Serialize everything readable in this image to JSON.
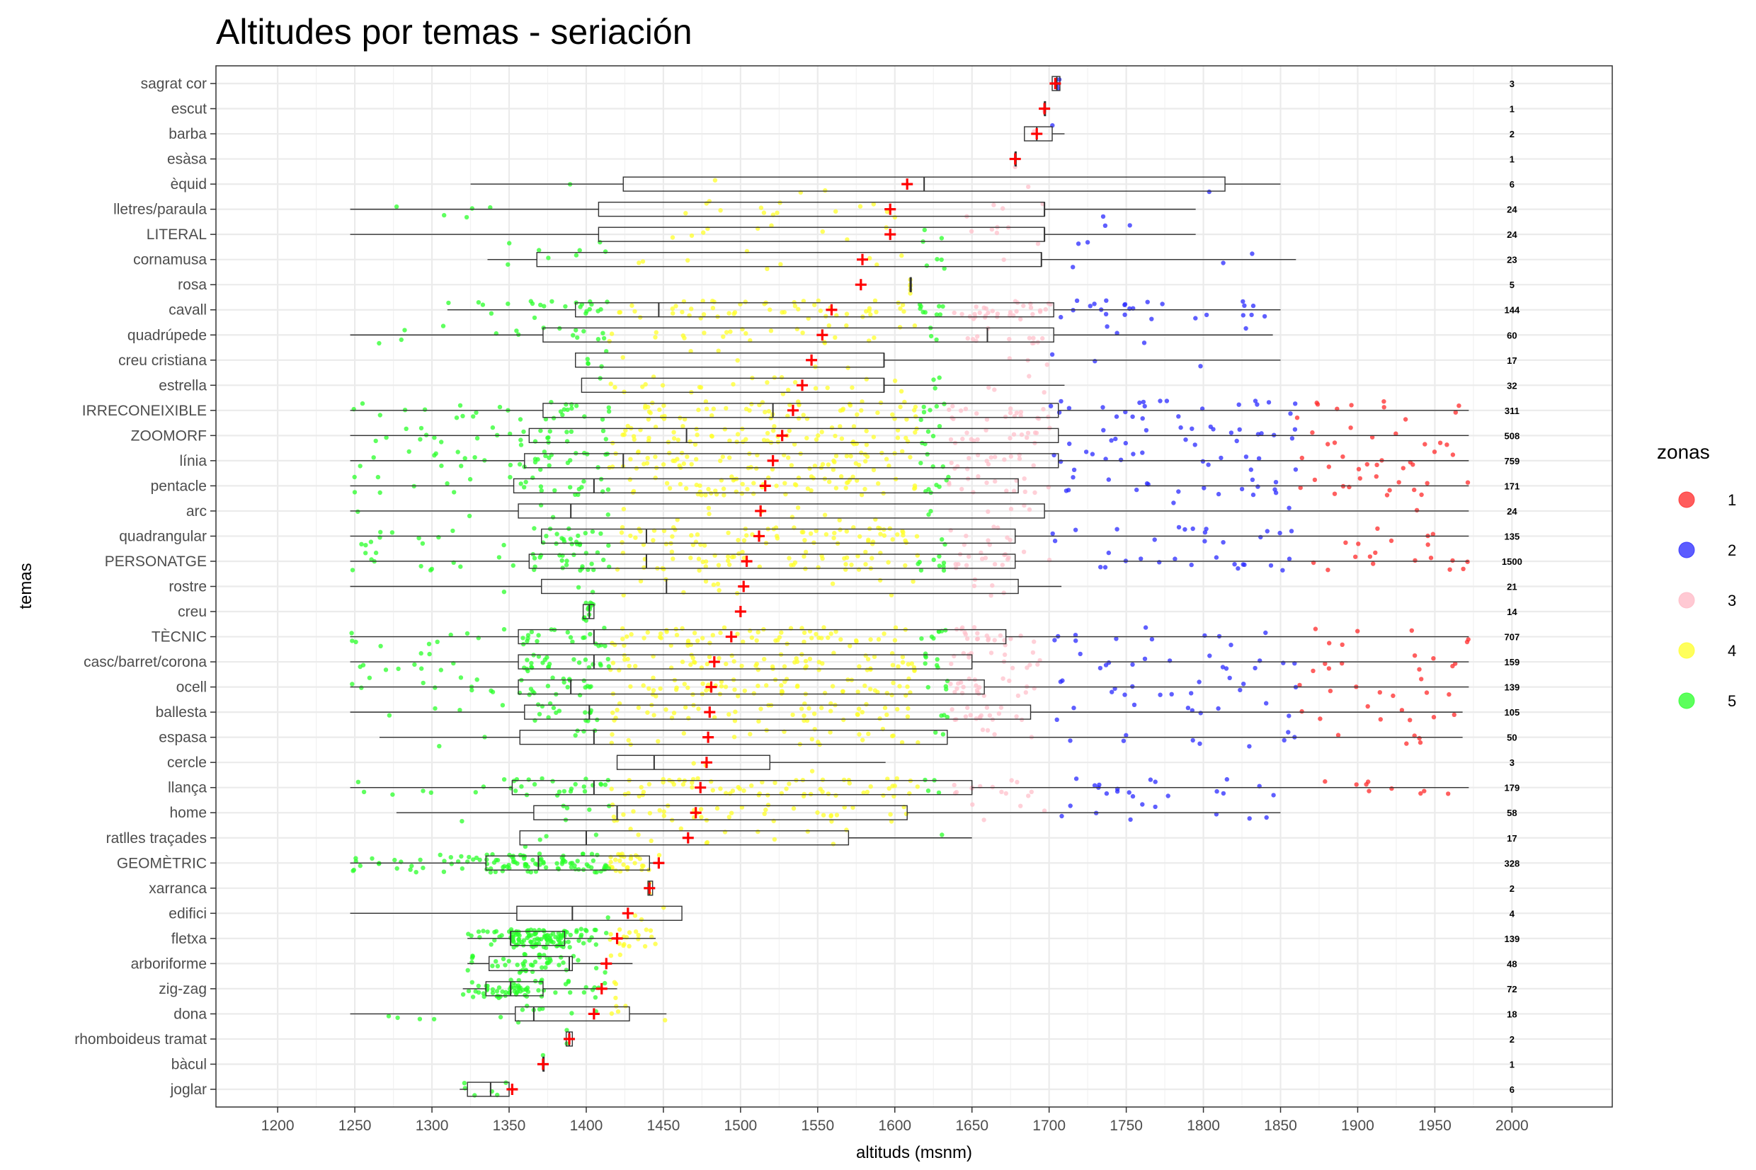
{
  "chart_data": {
    "type": "boxplot",
    "title": "Altitudes por temas - seriación",
    "xlabel": "altituds (msnm)",
    "ylabel": "temas",
    "xlim": [
      1160,
      2065
    ],
    "x_ticks": [
      1200,
      1250,
      1300,
      1350,
      1400,
      1450,
      1500,
      1550,
      1600,
      1650,
      1700,
      1750,
      1800,
      1850,
      1900,
      1950,
      2000
    ],
    "grid": true,
    "legend": {
      "title": "zonas",
      "placement": "right",
      "items": [
        {
          "label": "1",
          "color": "#ff4040"
        },
        {
          "label": "2",
          "color": "#4040ff"
        },
        {
          "label": "3",
          "color": "#ffc0cb"
        },
        {
          "label": "4",
          "color": "#ffff40"
        },
        {
          "label": "5",
          "color": "#40ff40"
        }
      ]
    },
    "zone_colors": {
      "1": "#ff2a2a",
      "2": "#2a2aff",
      "3": "#ffc0cb",
      "4": "#ffff2a",
      "5": "#2aff2a"
    },
    "mean_marker_color": "#ff0000",
    "categories": [
      {
        "label": "sagrat cor",
        "n": "3",
        "whisker_low": 1702,
        "q1": 1702,
        "median": 1705,
        "q3": 1707,
        "whisker_high": 1707,
        "mean": 1704,
        "bold": false
      },
      {
        "label": "escut",
        "n": "1",
        "whisker_low": 1697,
        "q1": 1697,
        "median": 1697,
        "q3": 1697,
        "whisker_high": 1697,
        "mean": 1697,
        "bold": false
      },
      {
        "label": "barba",
        "n": "2",
        "whisker_low": 1684,
        "q1": 1684,
        "median": 1692,
        "q3": 1702,
        "whisker_high": 1710,
        "mean": 1692,
        "bold": false
      },
      {
        "label": "esàsa",
        "n": "1",
        "whisker_low": 1678,
        "q1": 1678,
        "median": 1678,
        "q3": 1678,
        "whisker_high": 1678,
        "mean": 1678,
        "bold": false
      },
      {
        "label": "èquid",
        "n": "6",
        "whisker_low": 1325,
        "q1": 1424,
        "median": 1619,
        "q3": 1814,
        "whisker_high": 1850,
        "mean": 1608,
        "bold": false
      },
      {
        "label": "lletres/paraula",
        "n": "24",
        "whisker_low": 1247,
        "q1": 1408,
        "median": 1697,
        "q3": 1697,
        "whisker_high": 1795,
        "mean": 1597,
        "bold": true
      },
      {
        "label": "LITERAL",
        "n": "24",
        "whisker_low": 1247,
        "q1": 1408,
        "median": 1697,
        "q3": 1697,
        "whisker_high": 1795,
        "mean": 1597,
        "bold": true
      },
      {
        "label": "cornamusa",
        "n": "23",
        "whisker_low": 1336,
        "q1": 1368,
        "median": 1695,
        "q3": 1695,
        "whisker_high": 1860,
        "mean": 1579,
        "bold": true
      },
      {
        "label": "rosa",
        "n": "5",
        "whisker_low": 1610,
        "q1": 1610,
        "median": 1610,
        "q3": 1610,
        "whisker_high": 1610,
        "mean": 1578,
        "bold": false
      },
      {
        "label": "cavall",
        "n": "144",
        "whisker_low": 1310,
        "q1": 1393,
        "median": 1447,
        "q3": 1703,
        "whisker_high": 1850,
        "mean": 1559,
        "bold": true
      },
      {
        "label": "quadrúpede",
        "n": "60",
        "whisker_low": 1247,
        "q1": 1372,
        "median": 1660,
        "q3": 1703,
        "whisker_high": 1845,
        "mean": 1553,
        "bold": true
      },
      {
        "label": "creu cristiana",
        "n": "17",
        "whisker_low": 1393,
        "q1": 1393,
        "median": 1593,
        "q3": 1593,
        "whisker_high": 1850,
        "mean": 1546,
        "bold": true
      },
      {
        "label": "estrella",
        "n": "32",
        "whisker_low": 1397,
        "q1": 1397,
        "median": 1593,
        "q3": 1593,
        "whisker_high": 1710,
        "mean": 1540,
        "bold": true
      },
      {
        "label": "IRRECONEIXIBLE",
        "n": "311",
        "whisker_low": 1247,
        "q1": 1372,
        "median": 1521,
        "q3": 1706,
        "whisker_high": 1972,
        "mean": 1534,
        "bold": true
      },
      {
        "label": "ZOOMORF",
        "n": "508",
        "whisker_low": 1247,
        "q1": 1363,
        "median": 1465,
        "q3": 1706,
        "whisker_high": 1972,
        "mean": 1527,
        "bold": true
      },
      {
        "label": "línia",
        "n": "759",
        "whisker_low": 1247,
        "q1": 1360,
        "median": 1424,
        "q3": 1706,
        "whisker_high": 1972,
        "mean": 1521,
        "bold": true
      },
      {
        "label": "pentacle",
        "n": "171",
        "whisker_low": 1247,
        "q1": 1353,
        "median": 1405,
        "q3": 1680,
        "whisker_high": 1972,
        "mean": 1516,
        "bold": true
      },
      {
        "label": "arc",
        "n": "24",
        "whisker_low": 1247,
        "q1": 1356,
        "median": 1390,
        "q3": 1697,
        "whisker_high": 1972,
        "mean": 1513,
        "bold": true
      },
      {
        "label": "quadrangular",
        "n": "135",
        "whisker_low": 1247,
        "q1": 1371,
        "median": 1439,
        "q3": 1678,
        "whisker_high": 1972,
        "mean": 1512,
        "bold": true
      },
      {
        "label": "PERSONATGE",
        "n": "1500",
        "whisker_low": 1247,
        "q1": 1363,
        "median": 1439,
        "q3": 1678,
        "whisker_high": 1972,
        "mean": 1504,
        "bold": true
      },
      {
        "label": "rostre",
        "n": "21",
        "whisker_low": 1247,
        "q1": 1371,
        "median": 1452,
        "q3": 1680,
        "whisker_high": 1708,
        "mean": 1502,
        "bold": true
      },
      {
        "label": "creu",
        "n": "14",
        "whisker_low": 1398,
        "q1": 1398,
        "median": 1402,
        "q3": 1405,
        "whisker_high": 1405,
        "mean": 1500,
        "bold": true
      },
      {
        "label": "TÈCNIC",
        "n": "707",
        "whisker_low": 1247,
        "q1": 1356,
        "median": 1405,
        "q3": 1672,
        "whisker_high": 1972,
        "mean": 1494,
        "bold": true
      },
      {
        "label": "casc/barret/corona",
        "n": "159",
        "whisker_low": 1247,
        "q1": 1356,
        "median": 1405,
        "q3": 1650,
        "whisker_high": 1972,
        "mean": 1483,
        "bold": true
      },
      {
        "label": "ocell",
        "n": "139",
        "whisker_low": 1247,
        "q1": 1356,
        "median": 1390,
        "q3": 1658,
        "whisker_high": 1972,
        "mean": 1481,
        "bold": true
      },
      {
        "label": "ballesta",
        "n": "105",
        "whisker_low": 1247,
        "q1": 1360,
        "median": 1402,
        "q3": 1688,
        "whisker_high": 1968,
        "mean": 1480,
        "bold": true
      },
      {
        "label": "espasa",
        "n": "50",
        "whisker_low": 1266,
        "q1": 1357,
        "median": 1405,
        "q3": 1634,
        "whisker_high": 1968,
        "mean": 1479,
        "bold": true
      },
      {
        "label": "cercle",
        "n": "3",
        "whisker_low": 1420,
        "q1": 1420,
        "median": 1444,
        "q3": 1519,
        "whisker_high": 1594,
        "mean": 1478,
        "bold": false
      },
      {
        "label": "llança",
        "n": "179",
        "whisker_low": 1247,
        "q1": 1352,
        "median": 1405,
        "q3": 1650,
        "whisker_high": 1972,
        "mean": 1474,
        "bold": true
      },
      {
        "label": "home",
        "n": "58",
        "whisker_low": 1277,
        "q1": 1366,
        "median": 1420,
        "q3": 1608,
        "whisker_high": 1850,
        "mean": 1471,
        "bold": true
      },
      {
        "label": "ratlles traçades",
        "n": "17",
        "whisker_low": 1357,
        "q1": 1357,
        "median": 1400,
        "q3": 1570,
        "whisker_high": 1650,
        "mean": 1466,
        "bold": true
      },
      {
        "label": "GEOMÈTRIC",
        "n": "328",
        "whisker_low": 1247,
        "q1": 1335,
        "median": 1369,
        "q3": 1441,
        "whisker_high": 1450,
        "mean": 1447,
        "bold": true
      },
      {
        "label": "xarranca",
        "n": "2",
        "whisker_low": 1440,
        "q1": 1440,
        "median": 1441,
        "q3": 1443,
        "whisker_high": 1443,
        "mean": 1441,
        "bold": false
      },
      {
        "label": "edifici",
        "n": "4",
        "whisker_low": 1247,
        "q1": 1355,
        "median": 1391,
        "q3": 1462,
        "whisker_high": 1462,
        "mean": 1427,
        "bold": false
      },
      {
        "label": "fletxa",
        "n": "139",
        "whisker_low": 1323,
        "q1": 1351,
        "median": 1351,
        "q3": 1386,
        "whisker_high": 1445,
        "mean": 1420,
        "bold": true
      },
      {
        "label": "arboriforme",
        "n": "48",
        "whisker_low": 1323,
        "q1": 1337,
        "median": 1389,
        "q3": 1391,
        "whisker_high": 1430,
        "mean": 1413,
        "bold": true
      },
      {
        "label": "zig-zag",
        "n": "72",
        "whisker_low": 1320,
        "q1": 1335,
        "median": 1351,
        "q3": 1372,
        "whisker_high": 1420,
        "mean": 1410,
        "bold": true
      },
      {
        "label": "dona",
        "n": "18",
        "whisker_low": 1247,
        "q1": 1354,
        "median": 1366,
        "q3": 1428,
        "whisker_high": 1452,
        "mean": 1405,
        "bold": true
      },
      {
        "label": "rhomboideus tramat",
        "n": "2",
        "whisker_low": 1387,
        "q1": 1387,
        "median": 1389,
        "q3": 1391,
        "whisker_high": 1391,
        "mean": 1389,
        "bold": false
      },
      {
        "label": "bàcul",
        "n": "1",
        "whisker_low": 1372,
        "q1": 1372,
        "median": 1372,
        "q3": 1372,
        "whisker_high": 1372,
        "mean": 1372,
        "bold": false
      },
      {
        "label": "joglar",
        "n": "6",
        "whisker_low": 1318,
        "q1": 1323,
        "median": 1338,
        "q3": 1350,
        "whisker_high": 1350,
        "mean": 1352,
        "bold": false
      }
    ]
  }
}
